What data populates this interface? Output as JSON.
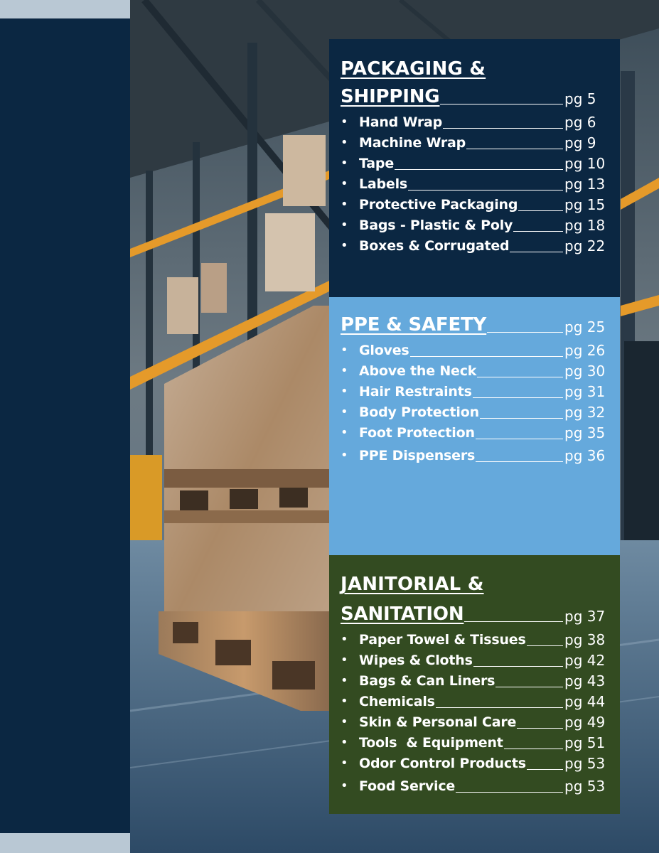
{
  "sections": [
    {
      "title_line1": "PACKAGING &",
      "title_line2": "SHIPPING",
      "page": "pg 5",
      "items": [
        {
          "label": "Hand Wrap",
          "page": "pg 6"
        },
        {
          "label": "Machine Wrap",
          "page": "pg 9"
        },
        {
          "label": "Tape",
          "page": "pg 10"
        },
        {
          "label": "Labels",
          "page": "pg 13"
        },
        {
          "label": "Protective Packaging",
          "page": "pg 15"
        },
        {
          "label": "Bags - Plastic & Poly",
          "page": "pg 18"
        },
        {
          "label": "Boxes & Corrugated",
          "page": "pg 22"
        }
      ]
    },
    {
      "title_line1": "PPE & SAFETY",
      "page": "pg 25",
      "items": [
        {
          "label": "Gloves",
          "page": "pg 26"
        },
        {
          "label": "Above the Neck",
          "page": "pg 30"
        },
        {
          "label": "Hair Restraints",
          "page": "pg 31"
        },
        {
          "label": "Body Protection",
          "page": "pg 32"
        },
        {
          "label": "Foot Protection",
          "page": "pg 35"
        },
        {
          "label": "PPE Dispensers",
          "page": "pg 36"
        }
      ]
    },
    {
      "title_line1": "JANITORIAL &",
      "title_line2": "SANITATION",
      "page": "pg 37",
      "items": [
        {
          "label": "Paper Towel & Tissues",
          "page": "pg 38"
        },
        {
          "label": "Wipes & Cloths",
          "page": "pg 42"
        },
        {
          "label": "Bags & Can Liners",
          "page": "pg 43"
        },
        {
          "label": "Chemicals",
          "page": "pg 44"
        },
        {
          "label": "Skin & Personal Care",
          "page": "pg 49"
        },
        {
          "label": "Tools  & Equipment",
          "page": "pg 51"
        },
        {
          "label": "Odor Control Products",
          "page": "pg 53"
        },
        {
          "label": "Food Service",
          "page": "pg 53"
        }
      ]
    }
  ],
  "bullet_char": "•",
  "colors": {
    "navy": "#0b2742",
    "light_blue": "#65a9dc",
    "dark_green": "#334b21",
    "strip_gray": "#b9c8d4"
  }
}
